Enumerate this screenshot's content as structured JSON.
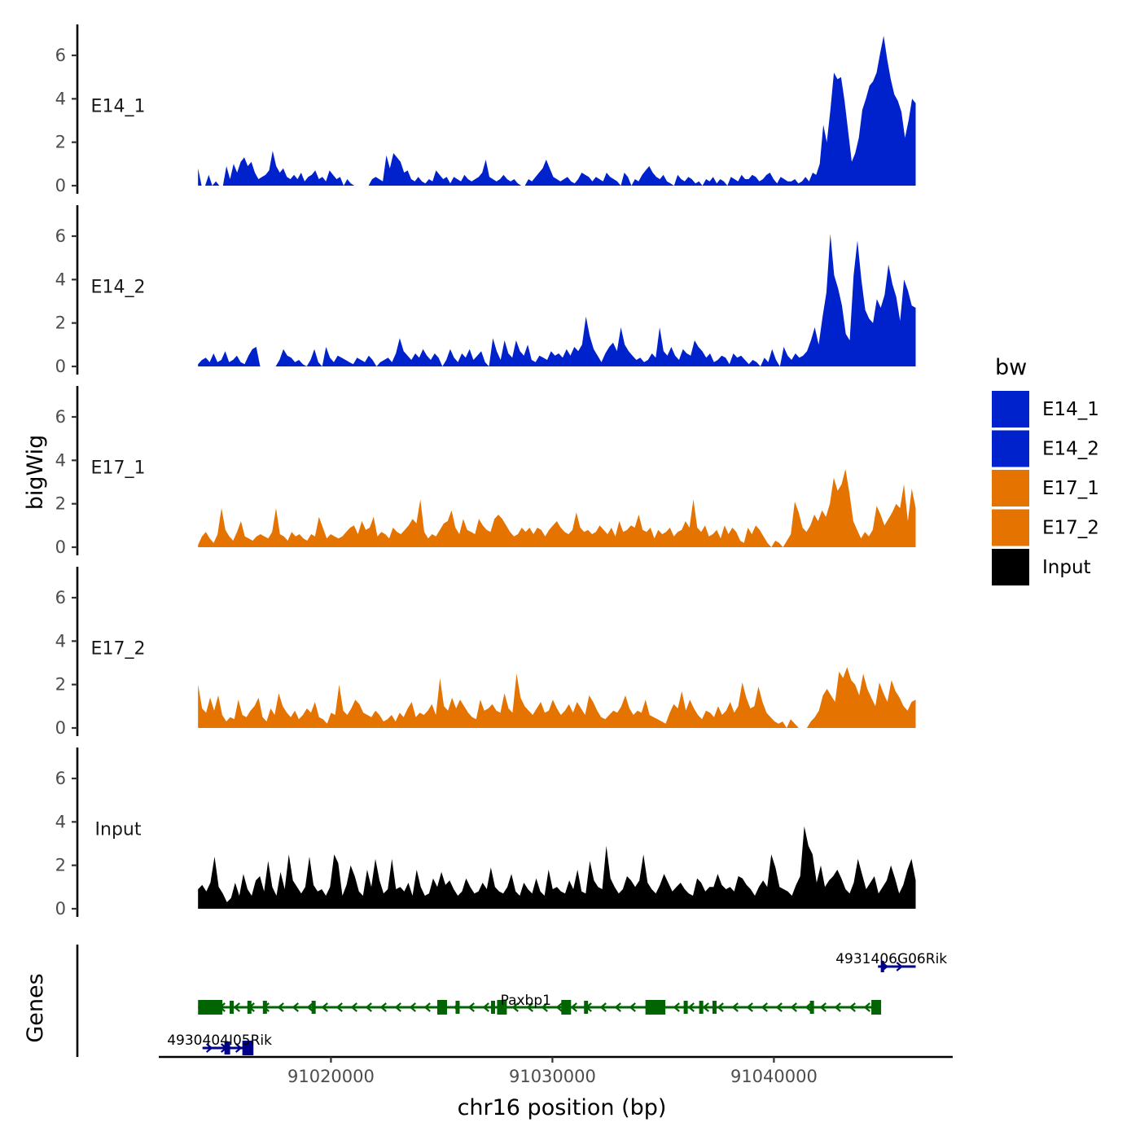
{
  "chart_data": {
    "type": "area",
    "y_title": "bigWig",
    "x_title": "chr16 position (bp)",
    "x_ticks": [
      91020000,
      91030000,
      91040000
    ],
    "x_tick_labels": [
      "91020000",
      "91030000",
      "91040000"
    ],
    "x_range": [
      91012300,
      91048000
    ],
    "data_x_range": [
      91014000,
      91046400
    ],
    "y_range": [
      0,
      7.3
    ],
    "y_ticks": [
      0,
      2,
      4,
      6
    ],
    "y_tick_labels": [
      "0",
      "2",
      "4",
      "6"
    ],
    "legend": {
      "title": "bw",
      "position": "right",
      "items": [
        {
          "label": "E14_1",
          "color": "#0022CC"
        },
        {
          "label": "E14_2",
          "color": "#0022CC"
        },
        {
          "label": "E17_1",
          "color": "#E57300"
        },
        {
          "label": "E17_2",
          "color": "#E57300"
        },
        {
          "label": "Input",
          "color": "#000000"
        }
      ]
    },
    "series": [
      {
        "name": "E14_1",
        "color": "#0022CC",
        "values": [
          0.8,
          0,
          0,
          0.5,
          0,
          0.2,
          0,
          0,
          0.9,
          0.3,
          1.0,
          0.6,
          1.1,
          1.3,
          0.9,
          1.1,
          0.6,
          0.3,
          0.4,
          0.5,
          0.7,
          1.6,
          0.9,
          0.6,
          0.8,
          0.4,
          0.3,
          0.5,
          0.3,
          0.6,
          0.2,
          0.4,
          0.5,
          0.7,
          0.3,
          0.4,
          0.2,
          0.7,
          0.5,
          0.3,
          0.4,
          0,
          0.3,
          0.1,
          0,
          0,
          0,
          0,
          0,
          0.3,
          0.4,
          0.3,
          0.2,
          1.4,
          0.8,
          1.5,
          1.3,
          1.1,
          0.6,
          0.7,
          0.3,
          0.2,
          0.4,
          0.2,
          0.1,
          0.3,
          0.2,
          0.7,
          0.5,
          0.3,
          0.4,
          0.1,
          0.4,
          0.3,
          0.2,
          0.5,
          0.3,
          0.2,
          0.3,
          0.4,
          0.6,
          1.2,
          0.4,
          0.3,
          0.2,
          0.3,
          0.5,
          0.3,
          0.2,
          0.3,
          0.1,
          0,
          0,
          0.3,
          0.2,
          0.4,
          0.6,
          0.8,
          1.2,
          0.8,
          0.4,
          0.3,
          0.2,
          0.3,
          0.4,
          0.2,
          0.1,
          0.3,
          0.6,
          0.5,
          0.4,
          0.2,
          0.4,
          0.3,
          0.2,
          0.6,
          0.4,
          0.3,
          0.2,
          0,
          0.6,
          0.4,
          0,
          0.3,
          0.2,
          0.5,
          0.7,
          0.9,
          0.6,
          0.4,
          0.3,
          0.5,
          0.2,
          0.1,
          0,
          0.5,
          0.3,
          0.2,
          0.4,
          0.3,
          0.1,
          0.2,
          0,
          0.3,
          0.2,
          0.4,
          0.1,
          0.3,
          0.2,
          0,
          0.4,
          0.3,
          0.2,
          0.5,
          0.3,
          0.3,
          0.5,
          0.4,
          0.2,
          0.3,
          0.5,
          0.6,
          0.3,
          0.1,
          0.4,
          0.3,
          0.2,
          0.2,
          0.3,
          0.1,
          0.2,
          0.4,
          0.2,
          0.6,
          0.5,
          1.0,
          2.8,
          2.0,
          3.5,
          5.2,
          4.9,
          5.0,
          3.9,
          2.5,
          1.1,
          1.5,
          2.2,
          3.5,
          4.0,
          4.6,
          4.8,
          5.2,
          6.1,
          6.9,
          5.8,
          4.9,
          4.2,
          3.9,
          3.4,
          2.2,
          3.0,
          4.0,
          3.8
        ]
      },
      {
        "name": "E14_2",
        "color": "#0022CC",
        "values": [
          0.1,
          0.3,
          0.4,
          0.2,
          0.6,
          0.2,
          0.3,
          0.7,
          0.2,
          0.3,
          0.5,
          0.2,
          0.1,
          0.5,
          0.8,
          0.9,
          0,
          0,
          0,
          0,
          0,
          0.3,
          0.8,
          0.5,
          0.4,
          0.2,
          0.3,
          0.1,
          0,
          0.3,
          0.8,
          0.2,
          0,
          0.9,
          0.4,
          0.2,
          0.5,
          0.4,
          0.3,
          0.2,
          0.1,
          0.4,
          0.3,
          0.2,
          0.5,
          0.3,
          0,
          0.2,
          0.3,
          0.4,
          0.2,
          0.6,
          1.3,
          0.7,
          0.5,
          0.3,
          0.6,
          0.4,
          0.8,
          0.5,
          0.3,
          0.6,
          0.4,
          0,
          0.3,
          0.8,
          0.4,
          0.2,
          0.6,
          0.4,
          0.8,
          0.3,
          0.5,
          0.7,
          0.2,
          0,
          1.3,
          0.7,
          0.3,
          1.2,
          0.6,
          0.4,
          1.2,
          0.7,
          0.5,
          1.0,
          0.3,
          0.2,
          0.5,
          0.4,
          0.3,
          0.7,
          0.5,
          0.6,
          0.4,
          0.8,
          0.5,
          0.9,
          0.7,
          1.0,
          2.3,
          1.4,
          0.8,
          0.5,
          0.2,
          0.6,
          0.9,
          1.1,
          0.7,
          1.8,
          1.0,
          0.7,
          0.5,
          0.3,
          0.4,
          0.2,
          0.3,
          0.6,
          0.4,
          1.8,
          0.7,
          0.5,
          0.9,
          0.5,
          0.3,
          0.8,
          0.6,
          0.5,
          1.2,
          0.9,
          0.7,
          0.4,
          0.6,
          0.2,
          0.3,
          0.5,
          0.4,
          0.1,
          0.6,
          0.4,
          0.5,
          0.3,
          0.1,
          0.3,
          0.2,
          0,
          0.4,
          0.2,
          0.8,
          0.3,
          0,
          0.9,
          0.5,
          0.3,
          0.6,
          0.4,
          0.5,
          0.7,
          1.2,
          1.8,
          1.0,
          2.3,
          3.4,
          6.1,
          4.2,
          3.6,
          2.8,
          1.5,
          1.2,
          4.2,
          5.8,
          4.0,
          2.6,
          2.2,
          2.0,
          3.1,
          2.7,
          3.3,
          4.7,
          3.8,
          3.2,
          2.1,
          4.0,
          3.5,
          2.8,
          2.7
        ]
      },
      {
        "name": "E17_1",
        "color": "#E57300",
        "values": [
          0.1,
          0.5,
          0.7,
          0.4,
          0.2,
          0.6,
          1.8,
          0.8,
          0.5,
          0.3,
          0.7,
          1.2,
          0.5,
          0.4,
          0.3,
          0.5,
          0.6,
          0.5,
          0.4,
          0.7,
          1.8,
          0.6,
          0.5,
          0.3,
          0.7,
          0.5,
          0.6,
          0.4,
          0.3,
          0.6,
          0.5,
          1.4,
          0.9,
          0.4,
          0.6,
          0.5,
          0.4,
          0.5,
          0.7,
          0.9,
          1.0,
          0.6,
          1.2,
          0.8,
          0.9,
          1.4,
          0.5,
          0.7,
          0.6,
          0.4,
          0.9,
          0.7,
          0.6,
          0.8,
          1.0,
          1.3,
          1.1,
          2.2,
          0.7,
          0.4,
          0.6,
          0.5,
          0.8,
          1.1,
          1.2,
          1.7,
          0.9,
          0.6,
          1.3,
          0.8,
          0.7,
          0.6,
          1.3,
          1.0,
          0.8,
          0.7,
          1.3,
          1.5,
          1.3,
          1.0,
          0.7,
          0.5,
          0.6,
          0.9,
          0.7,
          0.9,
          0.6,
          0.9,
          0.8,
          0.5,
          0.8,
          1.0,
          1.2,
          0.9,
          0.7,
          0.6,
          0.8,
          1.6,
          0.9,
          0.7,
          0.8,
          0.6,
          0.7,
          1.0,
          0.8,
          0.6,
          0.9,
          0.5,
          1.2,
          0.7,
          0.8,
          1.0,
          0.9,
          1.5,
          0.8,
          0.7,
          0.9,
          0.4,
          0.8,
          0.6,
          0.7,
          0.9,
          0.5,
          0.7,
          0.8,
          1.2,
          0.9,
          2.2,
          0.9,
          0.7,
          1.0,
          0.5,
          0.6,
          0.8,
          0.4,
          1.0,
          0.6,
          0.9,
          0.7,
          0.3,
          0.2,
          0.9,
          0.6,
          1.0,
          0.8,
          0.5,
          0.2,
          0,
          0.3,
          0.2,
          0,
          0.3,
          0.6,
          2.1,
          1.6,
          0.9,
          0.7,
          1.0,
          1.5,
          1.2,
          1.7,
          1.4,
          2.0,
          3.2,
          2.6,
          2.9,
          3.6,
          2.5,
          1.2,
          0.8,
          0.4,
          0.7,
          0.5,
          0.8,
          1.9,
          1.5,
          1.0,
          1.3,
          1.6,
          2.0,
          1.8,
          2.9,
          1.2,
          2.7,
          1.8
        ]
      },
      {
        "name": "E17_2",
        "color": "#E57300",
        "values": [
          2.0,
          0.9,
          0.7,
          1.4,
          0.8,
          1.5,
          0.6,
          0.3,
          0.5,
          0.4,
          1.3,
          0.6,
          0.5,
          0.8,
          1.0,
          1.4,
          0.5,
          0.3,
          0.9,
          0.6,
          1.6,
          1.0,
          0.7,
          0.5,
          0.8,
          0.4,
          0.6,
          0.9,
          0.7,
          1.2,
          0.5,
          0.4,
          0.2,
          0.7,
          0.6,
          2.0,
          0.8,
          0.6,
          0.9,
          1.3,
          1.1,
          0.7,
          0.6,
          0.5,
          0.8,
          0.6,
          0.3,
          0.4,
          0.6,
          0.3,
          0.7,
          0.5,
          0.9,
          1.2,
          0.5,
          0.7,
          0.6,
          0.8,
          1.1,
          0.6,
          2.3,
          1.0,
          0.8,
          1.4,
          0.9,
          1.3,
          1.0,
          0.7,
          0.5,
          0.4,
          1.3,
          0.8,
          0.9,
          1.1,
          0.8,
          0.7,
          1.6,
          0.9,
          0.7,
          2.5,
          1.4,
          1.0,
          0.8,
          0.6,
          0.9,
          1.2,
          0.7,
          0.8,
          1.3,
          0.9,
          0.6,
          0.8,
          1.1,
          0.7,
          1.2,
          0.9,
          0.6,
          1.5,
          1.2,
          0.8,
          0.5,
          0.4,
          0.6,
          0.8,
          0.7,
          1.0,
          1.5,
          0.9,
          0.6,
          0.8,
          0.7,
          1.3,
          0.6,
          0.5,
          0.4,
          0.3,
          0.2,
          0.7,
          1.1,
          0.9,
          1.7,
          0.8,
          1.3,
          0.9,
          0.6,
          0.4,
          0.8,
          0.7,
          0.5,
          1.0,
          0.6,
          0.8,
          1.2,
          0.7,
          1.0,
          2.1,
          1.4,
          0.9,
          1.0,
          1.9,
          1.2,
          0.7,
          0.5,
          0.3,
          0.2,
          0.3,
          0,
          0.4,
          0.2,
          0,
          0,
          0,
          0.3,
          0.5,
          0.8,
          1.5,
          1.8,
          1.5,
          1.2,
          2.6,
          2.3,
          2.8,
          2.2,
          2.0,
          1.5,
          2.5,
          1.8,
          1.4,
          1.0,
          2.1,
          1.6,
          1.2,
          2.2,
          1.7,
          1.4,
          1.0,
          0.8,
          1.2,
          1.3
        ]
      },
      {
        "name": "Input",
        "color": "#000000",
        "values": [
          0.9,
          1.1,
          0.8,
          1.2,
          2.4,
          1.0,
          0.7,
          0.3,
          0.5,
          1.2,
          0.6,
          1.6,
          0.9,
          0.6,
          1.3,
          1.5,
          0.8,
          2.2,
          1.0,
          0.6,
          1.7,
          0.9,
          2.5,
          1.3,
          1.0,
          0.7,
          1.0,
          2.4,
          1.1,
          0.8,
          0.9,
          0.6,
          1.0,
          2.5,
          2.1,
          0.6,
          1.1,
          2.0,
          1.5,
          0.8,
          0.6,
          1.8,
          1.0,
          2.3,
          1.3,
          0.7,
          0.9,
          2.3,
          0.9,
          1.0,
          0.8,
          1.2,
          0.6,
          1.8,
          1.0,
          0.6,
          0.7,
          1.4,
          1.0,
          1.7,
          1.1,
          1.3,
          0.9,
          0.6,
          0.8,
          1.4,
          1.0,
          0.7,
          0.8,
          1.2,
          0.9,
          1.9,
          1.0,
          0.8,
          0.7,
          1.0,
          1.6,
          0.8,
          0.6,
          1.2,
          0.9,
          0.7,
          1.4,
          0.8,
          0.6,
          1.8,
          0.9,
          1.0,
          0.8,
          0.7,
          1.3,
          0.9,
          1.8,
          0.8,
          0.7,
          2.2,
          1.3,
          1.0,
          0.9,
          2.9,
          1.4,
          1.0,
          0.7,
          0.9,
          1.5,
          1.3,
          1.0,
          1.3,
          2.5,
          1.2,
          0.9,
          0.7,
          1.1,
          1.6,
          1.2,
          0.8,
          1.0,
          1.2,
          0.9,
          0.7,
          0.6,
          1.4,
          1.2,
          0.8,
          1.0,
          1.0,
          1.6,
          1.1,
          0.9,
          1.0,
          0.8,
          1.5,
          1.4,
          1.1,
          0.9,
          0.6,
          1.0,
          1.3,
          1.0,
          2.5,
          1.9,
          1.0,
          0.9,
          0.8,
          0.6,
          1.1,
          1.5,
          3.8,
          2.9,
          2.5,
          1.2,
          2.0,
          1.0,
          1.3,
          1.5,
          1.8,
          1.4,
          0.9,
          0.7,
          1.2,
          2.3,
          1.6,
          0.9,
          1.2,
          1.5,
          0.7,
          1.0,
          1.3,
          2.0,
          1.4,
          0.7,
          1.1,
          1.8,
          2.3,
          1.3
        ]
      }
    ],
    "gene_track": {
      "title": "Genes",
      "genes": [
        {
          "name": "Paxbp1",
          "strand": "-",
          "start": 91014000,
          "end": 91044800,
          "color": "#006400",
          "row": 2
        },
        {
          "name": "4930404I05Rik",
          "strand": "+",
          "start": 91014200,
          "end": 91016300,
          "color": "#00008B",
          "row": 3
        },
        {
          "name": "4931406G06Rik",
          "strand": "+",
          "start": 91044700,
          "end": 91046400,
          "color": "#00008B",
          "row": 1
        }
      ]
    }
  }
}
